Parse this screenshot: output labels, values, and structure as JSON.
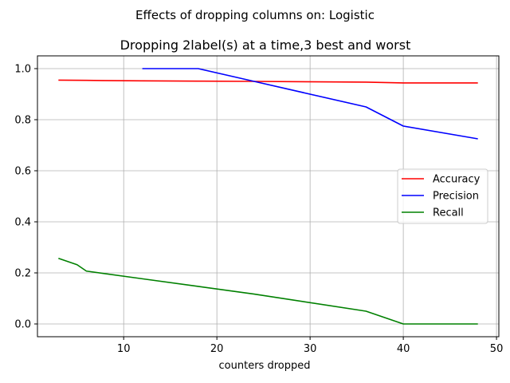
{
  "figure": {
    "suptitle": "Effects of dropping columns on: Logistic"
  },
  "chart_data": {
    "type": "line",
    "title": "Dropping 2label(s) at a time,3 best and worst",
    "xlabel": "counters dropped",
    "ylabel": "",
    "xlim": [
      0.75,
      50.25
    ],
    "ylim": [
      -0.05,
      1.05
    ],
    "xticks": [
      10,
      20,
      30,
      40,
      50
    ],
    "xtick_labels": [
      "10",
      "20",
      "30",
      "40",
      "50"
    ],
    "yticks": [
      0.0,
      0.2,
      0.4,
      0.6,
      0.8,
      1.0
    ],
    "ytick_labels": [
      "0.0",
      "0.2",
      "0.4",
      "0.6",
      "0.8",
      "1.0"
    ],
    "grid": true,
    "legend_position": "center-right",
    "series": [
      {
        "name": "Accuracy",
        "color": "#ff0000",
        "x": [
          3,
          6,
          12,
          18,
          24,
          36,
          40,
          48
        ],
        "y": [
          0.955,
          0.954,
          0.952,
          0.951,
          0.95,
          0.947,
          0.944,
          0.944
        ]
      },
      {
        "name": "Precision",
        "color": "#0000ff",
        "x": [
          12,
          18,
          24,
          36,
          40,
          48
        ],
        "y": [
          1.0,
          1.0,
          0.95,
          0.85,
          0.775,
          0.725
        ]
      },
      {
        "name": "Recall",
        "color": "#008000",
        "x": [
          3,
          5,
          6,
          12,
          18,
          24,
          36,
          40,
          48
        ],
        "y": [
          0.257,
          0.232,
          0.207,
          0.177,
          0.147,
          0.117,
          0.05,
          0.0,
          0.0
        ]
      }
    ]
  }
}
